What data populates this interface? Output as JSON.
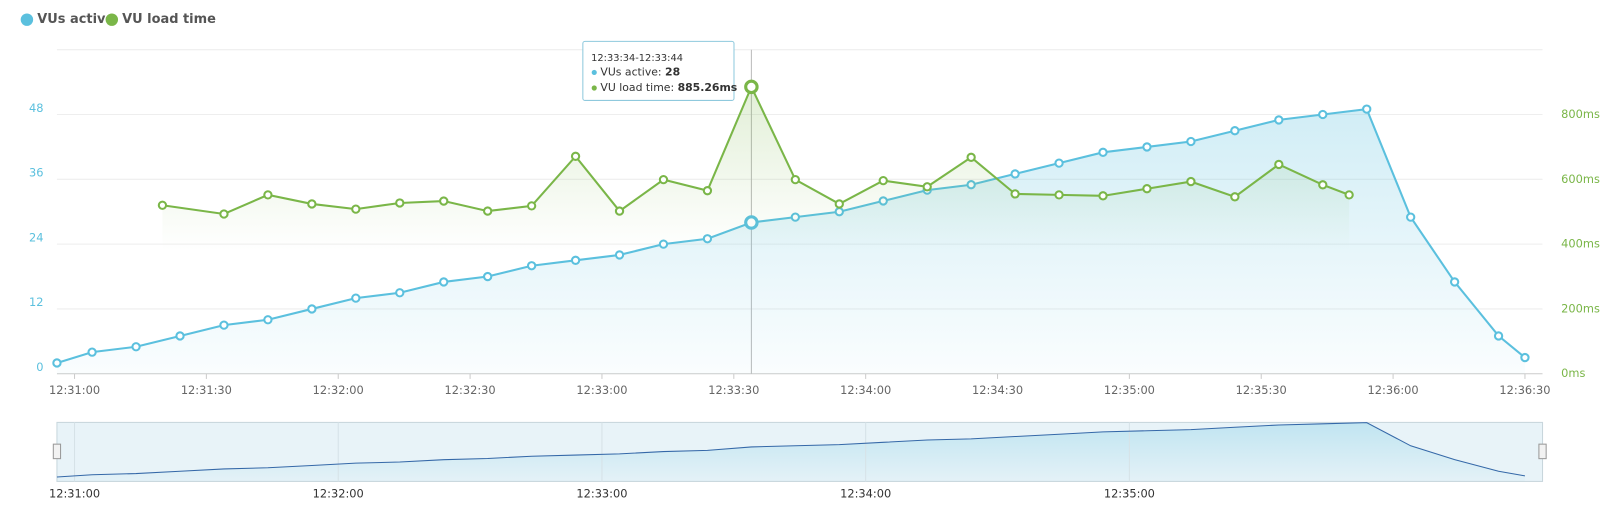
{
  "chart_data": {
    "type": "line",
    "series": [
      {
        "name": "VUs active",
        "color": "#5bc0de",
        "axis": "y",
        "x": [
          "12:30:56",
          "12:31:04",
          "12:31:14",
          "12:31:24",
          "12:31:34",
          "12:31:44",
          "12:31:54",
          "12:32:04",
          "12:32:14",
          "12:32:24",
          "12:32:34",
          "12:32:44",
          "12:32:54",
          "12:33:04",
          "12:33:14",
          "12:33:24",
          "12:33:34",
          "12:33:44",
          "12:33:54",
          "12:34:04",
          "12:34:14",
          "12:34:24",
          "12:34:34",
          "12:34:44",
          "12:34:54",
          "12:35:04",
          "12:35:14",
          "12:35:24",
          "12:35:34",
          "12:35:44",
          "12:35:54",
          "12:36:04",
          "12:36:14",
          "12:36:24",
          "12:36:30"
        ],
        "values": [
          2,
          4,
          5,
          7,
          9,
          10,
          12,
          14,
          15,
          17,
          18,
          20,
          21,
          22,
          24,
          25,
          28,
          29,
          30,
          32,
          34,
          35,
          37,
          39,
          41,
          42,
          43,
          45,
          47,
          48,
          49,
          29,
          17,
          7,
          3
        ]
      },
      {
        "name": "VU load time",
        "color": "#7ab648",
        "axis": "y2",
        "x": [
          "12:31:20",
          "12:31:34",
          "12:31:44",
          "12:31:54",
          "12:32:04",
          "12:32:14",
          "12:32:24",
          "12:32:34",
          "12:32:44",
          "12:32:54",
          "12:33:04",
          "12:33:14",
          "12:33:24",
          "12:33:34",
          "12:33:44",
          "12:33:54",
          "12:34:04",
          "12:34:14",
          "12:34:24",
          "12:34:34",
          "12:34:44",
          "12:34:54",
          "12:35:04",
          "12:35:14",
          "12:35:24",
          "12:35:34",
          "12:35:44",
          "12:35:50"
        ],
        "values": [
          520,
          493,
          552,
          524,
          508,
          527,
          533,
          502,
          518,
          671,
          502,
          599,
          565,
          885.26,
          599,
          524,
          596,
          577,
          668,
          555,
          552,
          549,
          571,
          593,
          546,
          646,
          583,
          552
        ]
      }
    ],
    "xlim": [
      "12:30:56",
      "12:36:34"
    ],
    "xticks": [
      "12:31:00",
      "12:31:30",
      "12:32:00",
      "12:32:30",
      "12:33:00",
      "12:33:30",
      "12:34:00",
      "12:34:30",
      "12:35:00",
      "12:35:30",
      "12:36:00",
      "12:36:30"
    ],
    "ylim": [
      0,
      60
    ],
    "yticks": [
      0,
      12,
      24,
      36,
      48
    ],
    "y2lim": [
      0,
      1000
    ],
    "y2ticks": [
      {
        "value": 0,
        "label": "0ms"
      },
      {
        "value": 200,
        "label": "200ms"
      },
      {
        "value": 400,
        "label": "400ms"
      },
      {
        "value": 600,
        "label": "600ms"
      },
      {
        "value": 800,
        "label": "800ms"
      }
    ],
    "grid": true,
    "legend": "top-left",
    "navigator_xticks": [
      "12:31:00",
      "12:32:00",
      "12:33:00",
      "12:34:00",
      "12:35:00"
    ],
    "tooltip": {
      "title": "12:33:34-12:33:44",
      "lines": [
        {
          "label": "VUs active:",
          "value": 28
        },
        {
          "label": "VU load time:",
          "value": "885.26ms"
        }
      ]
    }
  }
}
